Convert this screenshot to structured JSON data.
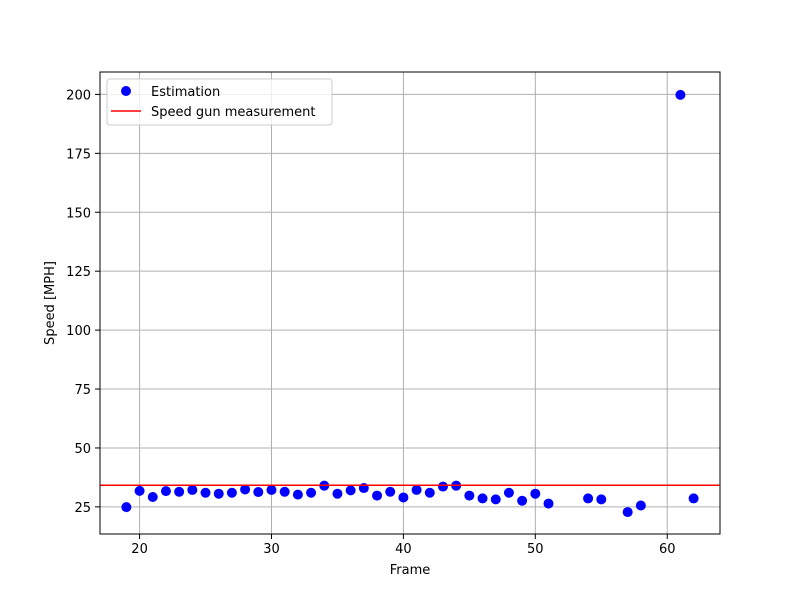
{
  "chart_data": {
    "type": "scatter",
    "xlabel": "Frame",
    "ylabel": "Speed [MPH]",
    "xlim": [
      17,
      64
    ],
    "ylim": [
      13.5,
      209.5
    ],
    "xticks": [
      20,
      30,
      40,
      50,
      60
    ],
    "yticks": [
      25,
      50,
      75,
      100,
      125,
      150,
      175,
      200
    ],
    "grid": true,
    "legend_position": "top-left",
    "series": [
      {
        "name": "Estimation",
        "kind": "scatter",
        "color": "#0000ff",
        "x": [
          19,
          20,
          21,
          22,
          23,
          24,
          25,
          26,
          27,
          28,
          29,
          30,
          31,
          32,
          33,
          34,
          35,
          36,
          37,
          38,
          39,
          40,
          41,
          42,
          43,
          44,
          45,
          46,
          47,
          48,
          49,
          50,
          51,
          54,
          55,
          57,
          58,
          61,
          62
        ],
        "y": [
          24.9,
          31.8,
          29.2,
          31.7,
          31.4,
          32.2,
          31.0,
          30.6,
          31.0,
          32.4,
          31.3,
          32.2,
          31.4,
          30.2,
          31.0,
          34.0,
          30.6,
          32.0,
          33.0,
          29.8,
          31.4,
          29.0,
          32.2,
          31.0,
          33.6,
          34.0,
          29.8,
          28.6,
          28.2,
          31.0,
          27.6,
          30.6,
          26.4,
          28.6,
          28.2,
          22.8,
          25.6,
          199.8,
          28.6
        ]
      },
      {
        "name": "Speed gun measurement",
        "kind": "hline",
        "color": "#ff0000",
        "y": 34.2
      }
    ]
  }
}
